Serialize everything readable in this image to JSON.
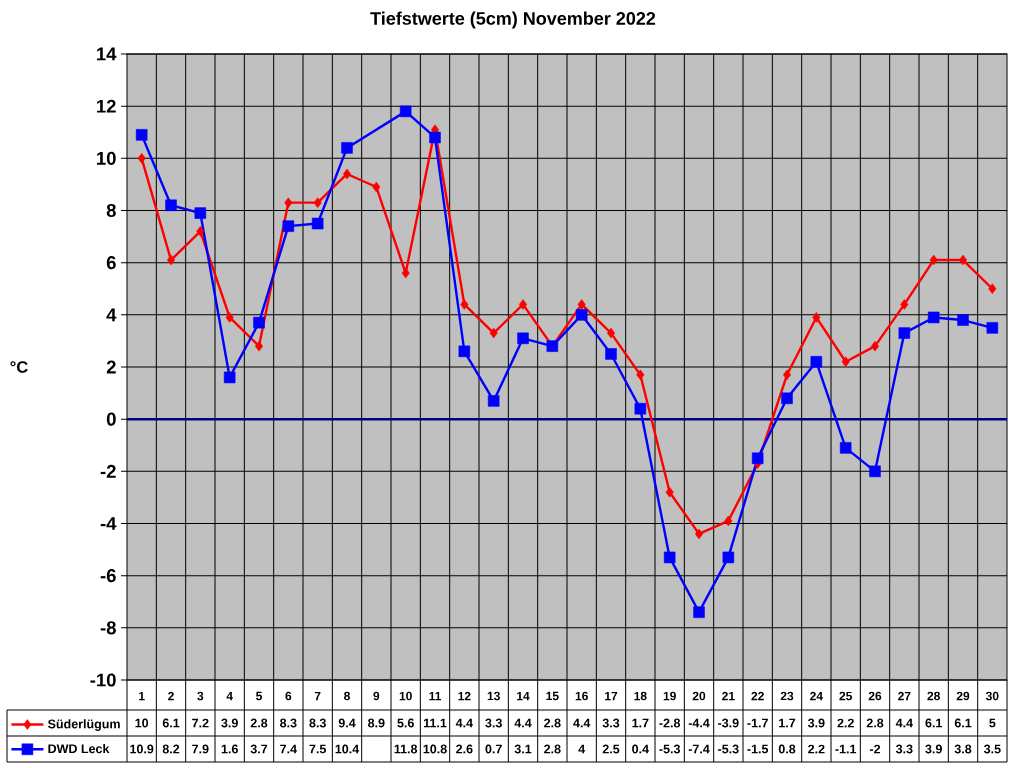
{
  "chart_data": {
    "type": "line",
    "title": "Tiefstwerte (5cm) November 2022",
    "ylabel": "°C",
    "categories": [
      "1",
      "2",
      "3",
      "4",
      "5",
      "6",
      "7",
      "8",
      "9",
      "10",
      "11",
      "12",
      "13",
      "14",
      "15",
      "16",
      "17",
      "18",
      "19",
      "20",
      "21",
      "22",
      "23",
      "24",
      "25",
      "26",
      "27",
      "28",
      "29",
      "30"
    ],
    "series": [
      {
        "name": "Süderlügum",
        "color": "#ff0000",
        "marker": "diamond",
        "values": [
          10,
          6.1,
          7.2,
          3.9,
          2.8,
          8.3,
          8.3,
          9.4,
          8.9,
          5.6,
          11.1,
          4.4,
          3.3,
          4.4,
          2.8,
          4.4,
          3.3,
          1.7,
          -2.8,
          -4.4,
          -3.9,
          -1.7,
          1.7,
          3.9,
          2.2,
          2.8,
          4.4,
          6.1,
          6.1,
          5
        ]
      },
      {
        "name": "DWD Leck",
        "color": "#0000ff",
        "marker": "square",
        "values": [
          10.9,
          8.2,
          7.9,
          1.6,
          3.7,
          7.4,
          7.5,
          10.4,
          null,
          11.8,
          10.8,
          2.6,
          0.7,
          3.1,
          2.8,
          4,
          2.5,
          0.4,
          -5.3,
          -7.4,
          -5.3,
          -1.5,
          0.8,
          2.2,
          -1.1,
          -2,
          3.3,
          3.9,
          3.8,
          3.5
        ]
      }
    ],
    "ylim": [
      -10,
      14
    ],
    "yticks": [
      -10,
      -8,
      -6,
      -4,
      -2,
      0,
      2,
      4,
      6,
      8,
      10,
      12,
      14
    ],
    "ref_lines": [
      {
        "axis": "y",
        "value": 0,
        "color": "#000080"
      }
    ],
    "grid": true,
    "legend": "bottom left",
    "data_labels": true,
    "line_style": "solid"
  }
}
